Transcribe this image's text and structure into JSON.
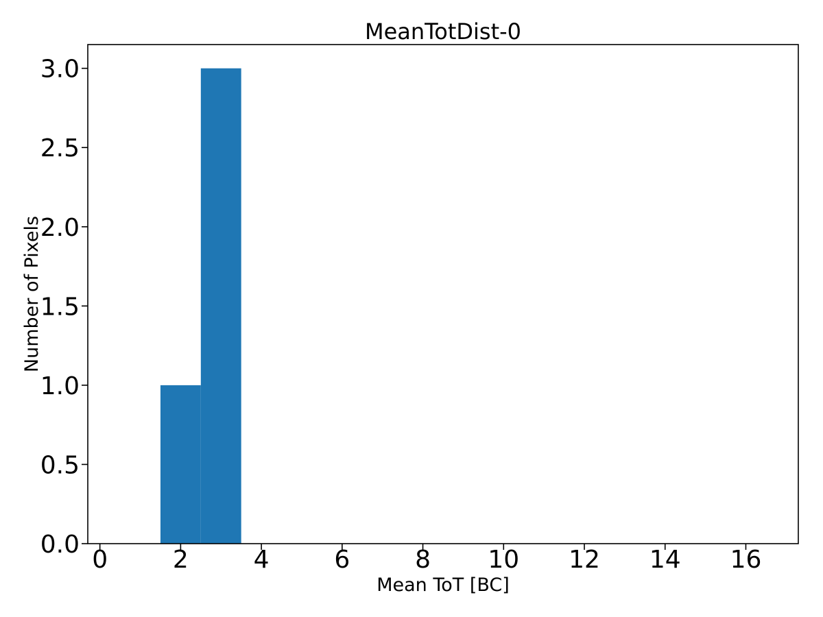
{
  "figure": {
    "background_color": "#ffffff",
    "plot_background_color": "#ffffff",
    "spine_color": "#000000"
  },
  "chart_data": {
    "type": "bar",
    "subtype": "histogram",
    "title": "MeanTotDist-0",
    "xlabel": "Mean ToT [BC]",
    "ylabel": "Number of Pixels",
    "bin_edges": [
      1.5,
      2.5,
      3.5
    ],
    "counts": [
      1,
      3
    ],
    "bar_color": "#1f77b4",
    "xlim": [
      -0.3,
      17.3
    ],
    "ylim": [
      0,
      3.15
    ],
    "xticks": [
      0,
      2,
      4,
      6,
      8,
      10,
      12,
      14,
      16
    ],
    "xtick_labels": [
      "0",
      "2",
      "4",
      "6",
      "8",
      "10",
      "12",
      "14",
      "16"
    ],
    "yticks": [
      0,
      0.5,
      1,
      1.5,
      2,
      2.5,
      3
    ],
    "ytick_labels": [
      "0.0",
      "0.5",
      "1.0",
      "1.5",
      "2.0",
      "2.5",
      "3.0"
    ],
    "grid": false,
    "legend_position": "none",
    "tick_color": "#000000",
    "text_color": "#000000"
  }
}
